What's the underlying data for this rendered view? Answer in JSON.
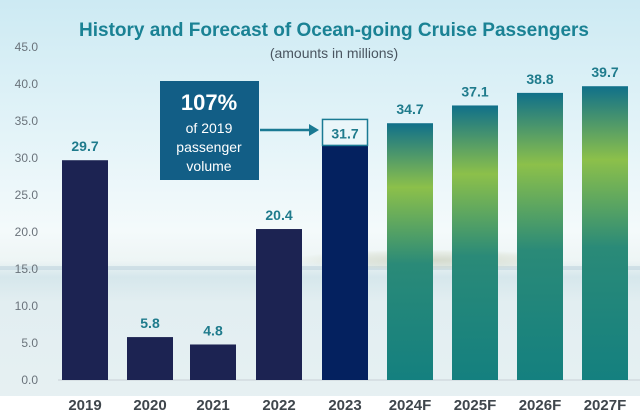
{
  "chart_data": {
    "type": "bar",
    "title": "History and Forecast of Ocean-going Cruise Passengers",
    "subtitle": "(amounts in millions)",
    "xlabel": "",
    "ylabel": "",
    "ylim": [
      0,
      45
    ],
    "yticks": [
      "0.0",
      "5.0",
      "10.0",
      "15.0",
      "20.0",
      "25.0",
      "30.0",
      "35.0",
      "40.0",
      "45.0"
    ],
    "grid": false,
    "categories": [
      "2019",
      "2020",
      "2021",
      "2022",
      "2023",
      "2024F",
      "2025F",
      "2026F",
      "2027F"
    ],
    "values": [
      29.7,
      5.8,
      4.8,
      20.4,
      31.7,
      34.7,
      37.1,
      38.8,
      39.7
    ],
    "value_labels": [
      "29.7",
      "5.8",
      "4.8",
      "20.4",
      "31.7",
      "34.7",
      "37.1",
      "38.8",
      "39.7"
    ],
    "series_kind": [
      "historical",
      "historical",
      "historical",
      "historical",
      "highlight",
      "forecast",
      "forecast",
      "forecast",
      "forecast"
    ],
    "annotation": {
      "big": "107%",
      "lines": [
        "of 2019",
        "passenger",
        "volume"
      ],
      "target_category": "2023"
    }
  },
  "colors": {
    "historical": "#1c2352",
    "highlight": "#04215f",
    "forecast_top": "#10708a",
    "forecast_mid": "#8cc04a",
    "forecast_bottom": "#14807f",
    "callout": "#125e86",
    "title": "#1a8294",
    "value_label": "#1f7b8c"
  }
}
